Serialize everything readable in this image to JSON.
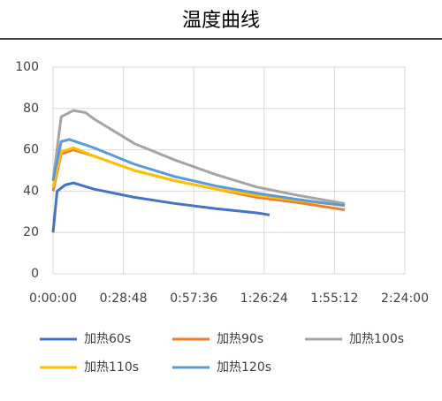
{
  "chart_data": {
    "type": "line",
    "title": "温度曲线",
    "xlim": [
      0,
      8640
    ],
    "xticks": [
      {
        "value": 0,
        "label": "0:00:00"
      },
      {
        "value": 1728,
        "label": "0:28:48"
      },
      {
        "value": 3456,
        "label": "0:57:36"
      },
      {
        "value": 5184,
        "label": "1:26:24"
      },
      {
        "value": 6912,
        "label": "1:55:12"
      },
      {
        "value": 8640,
        "label": "2:24:00"
      }
    ],
    "ylim": [
      0,
      100
    ],
    "yticks": [
      0,
      20,
      40,
      60,
      80,
      100
    ],
    "grid": true,
    "series": [
      {
        "name": "加热60s",
        "color": "#4472c4",
        "x": [
          0,
          100,
          300,
          500,
          1000,
          2000,
          3000,
          4000,
          5000,
          5318
        ],
        "values": [
          20,
          40,
          43,
          44,
          41,
          37,
          34,
          31.5,
          29.5,
          28.5
        ]
      },
      {
        "name": "加热90s",
        "color": "#ed7d31",
        "x": [
          0,
          200,
          500,
          1000,
          2000,
          3000,
          4000,
          5000,
          6000,
          7164
        ],
        "values": [
          40,
          58,
          60,
          57,
          50,
          45,
          41,
          37,
          34.5,
          31
        ]
      },
      {
        "name": "加热100s",
        "color": "#a5a5a5",
        "x": [
          0,
          200,
          500,
          800,
          1000,
          2000,
          3000,
          4000,
          5000,
          6000,
          7164
        ],
        "values": [
          45,
          76,
          79,
          78,
          75,
          63,
          55,
          48,
          42,
          38,
          34
        ]
      },
      {
        "name": "加热110s",
        "color": "#ffc000",
        "x": [
          0,
          200,
          500,
          1000,
          2000,
          3000,
          4000,
          5000,
          6000,
          7164
        ],
        "values": [
          42,
          59,
          61,
          57,
          50,
          45,
          41,
          38,
          35.5,
          33
        ]
      },
      {
        "name": "加热120s",
        "color": "#5b9bd5",
        "x": [
          0,
          200,
          400,
          1000,
          2000,
          3000,
          4000,
          5000,
          6000,
          7164
        ],
        "values": [
          45,
          64,
          65,
          61,
          53,
          47,
          42.5,
          39,
          36,
          33
        ]
      }
    ]
  }
}
